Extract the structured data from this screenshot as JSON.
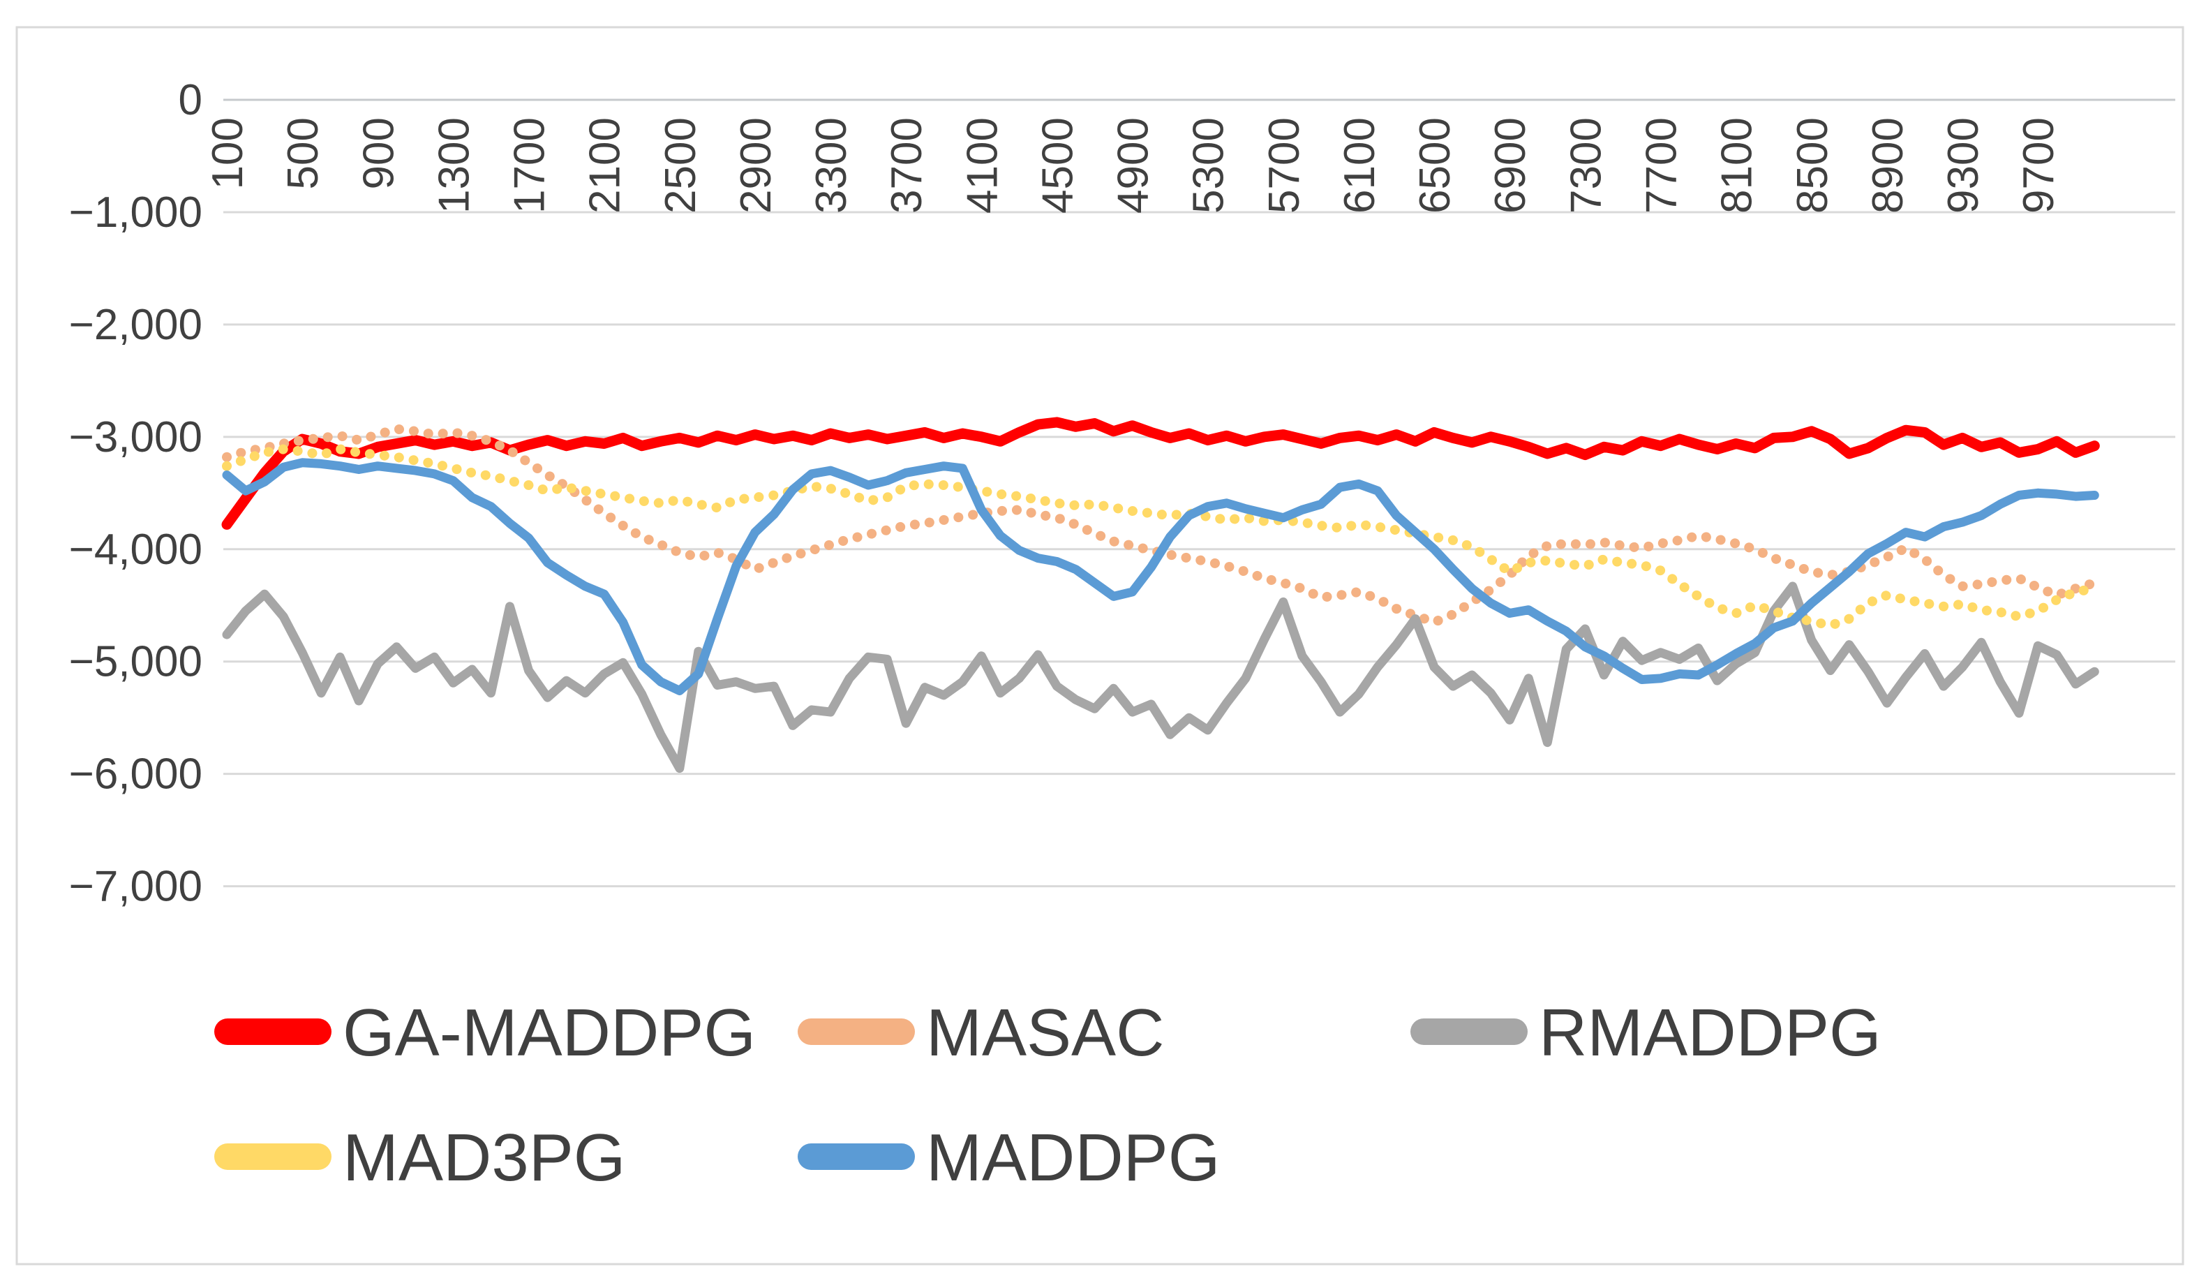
{
  "chart_data": {
    "type": "line",
    "title": "",
    "xlabel": "",
    "ylabel": "",
    "grid": "horizontal",
    "legend_position": "bottom-left",
    "background_color": "#FFFFFF",
    "border_color": "#D9D9D9",
    "gridline_color": "#D9D9D9",
    "axis_label_color": "#404040",
    "x_values": {
      "start": 100,
      "step": 100,
      "count": 100
    },
    "x_tick_values": [
      100,
      500,
      900,
      1300,
      1700,
      2100,
      2500,
      2900,
      3300,
      3700,
      4100,
      4500,
      4900,
      5300,
      5700,
      6100,
      6500,
      6900,
      7300,
      7700,
      8100,
      8500,
      8900,
      9300,
      9700
    ],
    "x_tick_labels": [
      "100",
      "500",
      "900",
      "1300",
      "1700",
      "2100",
      "2500",
      "2900",
      "3300",
      "3700",
      "4100",
      "4500",
      "4900",
      "5300",
      "5700",
      "6100",
      "6500",
      "6900",
      "7300",
      "7700",
      "8100",
      "8500",
      "8900",
      "9300",
      "9700"
    ],
    "y_tick_values": [
      0,
      -1000,
      -2000,
      -3000,
      -4000,
      -5000,
      -6000,
      -7000
    ],
    "y_tick_labels": [
      "0",
      "−1,000",
      "−2,000",
      "−3,000",
      "−4,000",
      "−5,000",
      "−6,000",
      "−7,000"
    ],
    "ylim": [
      -7000,
      0
    ],
    "legend_rows": [
      [
        "GA-MADDPG",
        "MASAC",
        "RMADDPG"
      ],
      [
        "MAD3PG",
        "MADDPG"
      ]
    ],
    "series": [
      {
        "name": "GA-MADDPG",
        "color": "#FF0000",
        "line_style": "solid",
        "values": [
          -3780,
          -3550,
          -3320,
          -3130,
          -3020,
          -3060,
          -3130,
          -3150,
          -3090,
          -3060,
          -3030,
          -3070,
          -3040,
          -3080,
          -3050,
          -3120,
          -3070,
          -3030,
          -3080,
          -3040,
          -3060,
          -3010,
          -3080,
          -3040,
          -3010,
          -3050,
          -2990,
          -3030,
          -2980,
          -3020,
          -2990,
          -3030,
          -2970,
          -3010,
          -2980,
          -3020,
          -2990,
          -2960,
          -3010,
          -2970,
          -3000,
          -3040,
          -2960,
          -2890,
          -2870,
          -2910,
          -2880,
          -2950,
          -2900,
          -2960,
          -3010,
          -2970,
          -3030,
          -2990,
          -3040,
          -3000,
          -2980,
          -3020,
          -3060,
          -3010,
          -2990,
          -3030,
          -2980,
          -3040,
          -2960,
          -3010,
          -3050,
          -3000,
          -3040,
          -3090,
          -3150,
          -3100,
          -3160,
          -3090,
          -3120,
          -3040,
          -3080,
          -3020,
          -3070,
          -3110,
          -3060,
          -3100,
          -3010,
          -3000,
          -2950,
          -3020,
          -3150,
          -3100,
          -3010,
          -2940,
          -2960,
          -3070,
          -3010,
          -3090,
          -3050,
          -3140,
          -3110,
          -3040,
          -3140,
          -3080
        ]
      },
      {
        "name": "MASAC",
        "color": "#F4B183",
        "line_style": "dotted",
        "values": [
          -3180,
          -3130,
          -3100,
          -3060,
          -3030,
          -3010,
          -2990,
          -3030,
          -2980,
          -2930,
          -2950,
          -2980,
          -2960,
          -2990,
          -3040,
          -3120,
          -3230,
          -3340,
          -3440,
          -3560,
          -3680,
          -3790,
          -3890,
          -3960,
          -4030,
          -4070,
          -4030,
          -4090,
          -4180,
          -4120,
          -4060,
          -4010,
          -3960,
          -3910,
          -3870,
          -3830,
          -3790,
          -3770,
          -3740,
          -3710,
          -3680,
          -3660,
          -3650,
          -3690,
          -3720,
          -3780,
          -3860,
          -3930,
          -3970,
          -4010,
          -4050,
          -4080,
          -4110,
          -4150,
          -4200,
          -4260,
          -4300,
          -4350,
          -4430,
          -4410,
          -4380,
          -4440,
          -4530,
          -4590,
          -4650,
          -4580,
          -4470,
          -4360,
          -4230,
          -4060,
          -3970,
          -3950,
          -3960,
          -3940,
          -3970,
          -3990,
          -3950,
          -3920,
          -3880,
          -3910,
          -3950,
          -4000,
          -4080,
          -4140,
          -4200,
          -4230,
          -4200,
          -4140,
          -4070,
          -3990,
          -4090,
          -4230,
          -4330,
          -4310,
          -4280,
          -4260,
          -4340,
          -4410,
          -4350,
          -4300
        ]
      },
      {
        "name": "RMADDPG",
        "color": "#A6A6A6",
        "line_style": "solid",
        "values": [
          -4760,
          -4550,
          -4400,
          -4600,
          -4920,
          -5280,
          -4960,
          -5350,
          -5020,
          -4870,
          -5060,
          -4960,
          -5190,
          -5070,
          -5280,
          -4510,
          -5080,
          -5320,
          -5170,
          -5280,
          -5110,
          -5010,
          -5290,
          -5650,
          -5950,
          -4910,
          -5210,
          -5180,
          -5240,
          -5220,
          -5570,
          -5430,
          -5450,
          -5150,
          -4960,
          -4980,
          -5550,
          -5230,
          -5300,
          -5180,
          -4950,
          -5280,
          -5150,
          -4940,
          -5220,
          -5340,
          -5420,
          -5240,
          -5450,
          -5380,
          -5650,
          -5500,
          -5610,
          -5370,
          -5150,
          -4800,
          -4470,
          -4950,
          -5180,
          -5450,
          -5290,
          -5050,
          -4850,
          -4620,
          -5050,
          -5220,
          -5120,
          -5280,
          -5520,
          -5150,
          -5720,
          -4890,
          -4710,
          -5120,
          -4820,
          -4990,
          -4920,
          -4980,
          -4880,
          -5170,
          -5020,
          -4920,
          -4550,
          -4330,
          -4810,
          -5080,
          -4850,
          -5090,
          -5370,
          -5140,
          -4930,
          -5220,
          -5050,
          -4830,
          -5180,
          -5460,
          -4860,
          -4940,
          -5200,
          -5090
        ]
      },
      {
        "name": "MAD3PG",
        "color": "#FFD966",
        "line_style": "dotted",
        "values": [
          -3260,
          -3200,
          -3140,
          -3110,
          -3130,
          -3160,
          -3110,
          -3140,
          -3160,
          -3180,
          -3210,
          -3240,
          -3280,
          -3320,
          -3350,
          -3390,
          -3430,
          -3480,
          -3450,
          -3480,
          -3510,
          -3540,
          -3570,
          -3590,
          -3560,
          -3600,
          -3630,
          -3560,
          -3540,
          -3520,
          -3480,
          -3440,
          -3460,
          -3510,
          -3570,
          -3540,
          -3440,
          -3420,
          -3430,
          -3450,
          -3480,
          -3510,
          -3530,
          -3560,
          -3590,
          -3610,
          -3600,
          -3630,
          -3660,
          -3680,
          -3700,
          -3680,
          -3710,
          -3740,
          -3720,
          -3750,
          -3740,
          -3760,
          -3790,
          -3810,
          -3780,
          -3800,
          -3830,
          -3860,
          -3890,
          -3920,
          -3980,
          -4090,
          -4200,
          -4120,
          -4100,
          -4130,
          -4150,
          -4090,
          -4120,
          -4140,
          -4190,
          -4310,
          -4420,
          -4520,
          -4570,
          -4500,
          -4550,
          -4610,
          -4640,
          -4680,
          -4620,
          -4480,
          -4410,
          -4450,
          -4480,
          -4510,
          -4490,
          -4540,
          -4560,
          -4600,
          -4550,
          -4450,
          -4380,
          -4350
        ]
      },
      {
        "name": "MADDPG",
        "color": "#5B9BD5",
        "line_style": "solid",
        "values": [
          -3340,
          -3480,
          -3400,
          -3270,
          -3230,
          -3240,
          -3260,
          -3290,
          -3260,
          -3280,
          -3300,
          -3330,
          -3390,
          -3540,
          -3620,
          -3770,
          -3900,
          -4120,
          -4230,
          -4330,
          -4400,
          -4650,
          -5030,
          -5180,
          -5260,
          -5110,
          -4620,
          -4150,
          -3850,
          -3690,
          -3470,
          -3330,
          -3300,
          -3360,
          -3430,
          -3390,
          -3320,
          -3290,
          -3260,
          -3280,
          -3650,
          -3880,
          -4010,
          -4080,
          -4110,
          -4180,
          -4300,
          -4420,
          -4380,
          -4160,
          -3890,
          -3700,
          -3620,
          -3590,
          -3640,
          -3680,
          -3720,
          -3650,
          -3600,
          -3450,
          -3420,
          -3480,
          -3700,
          -3850,
          -4000,
          -4180,
          -4350,
          -4480,
          -4570,
          -4540,
          -4640,
          -4730,
          -4870,
          -4950,
          -5060,
          -5160,
          -5150,
          -5110,
          -5120,
          -5030,
          -4930,
          -4840,
          -4700,
          -4640,
          -4480,
          -4340,
          -4200,
          -4040,
          -3950,
          -3850,
          -3890,
          -3800,
          -3760,
          -3700,
          -3600,
          -3520,
          -3500,
          -3510,
          -3530,
          -3520
        ]
      }
    ]
  }
}
